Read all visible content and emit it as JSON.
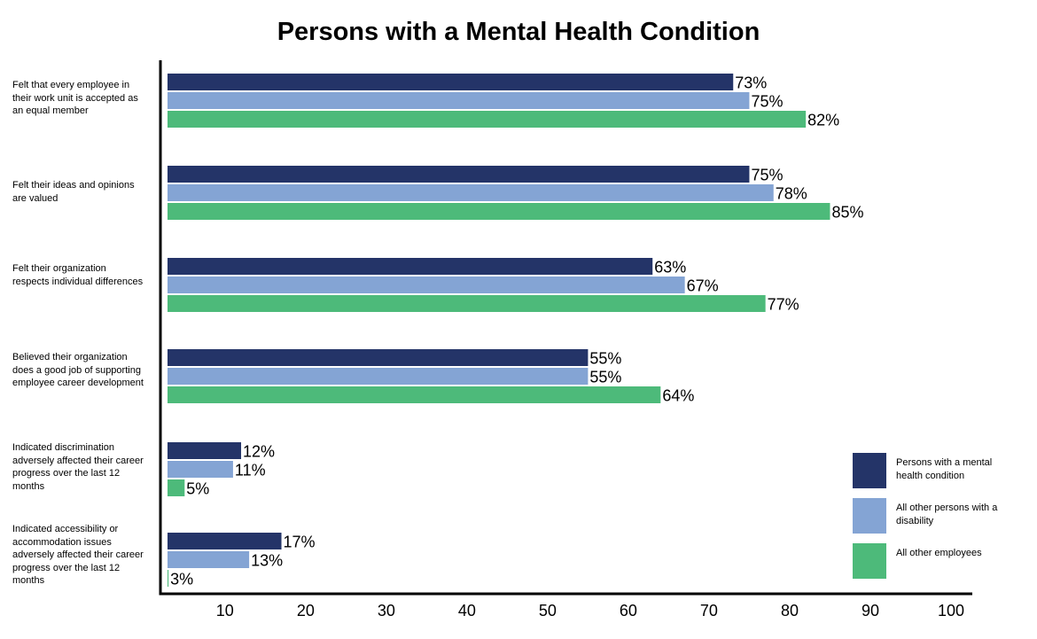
{
  "chart_data": {
    "type": "bar",
    "orientation": "horizontal",
    "title": "Persons with a Mental Health Condition",
    "xlabel": "",
    "ylabel": "",
    "xlim": [
      2,
      100
    ],
    "xticks": [
      10,
      20,
      30,
      40,
      50,
      60,
      70,
      80,
      90,
      100
    ],
    "grid": false,
    "legend_position": "bottom-right",
    "categories": [
      "Felt that every employee in their work unit is accepted as an equal member",
      "Felt their ideas and opinions are valued",
      "Felt their organization respects individual differences",
      "Believed their organization does a good job of supporting employee career development",
      "Indicated discrimination adversely affected their career progress over the last 12 months",
      "Indicated accessibility or accommodation issues adversely affected their career progress over the last 12 months"
    ],
    "series": [
      {
        "name": "Persons with a mental health condition",
        "color": "#243468",
        "values": [
          73,
          75,
          63,
          55,
          12,
          17
        ]
      },
      {
        "name": "All other persons with a disability",
        "color": "#84a4d4",
        "values": [
          75,
          78,
          67,
          55,
          11,
          13
        ]
      },
      {
        "name": "All other employees",
        "color": "#4dba7a",
        "values": [
          82,
          85,
          77,
          64,
          5,
          3
        ]
      }
    ],
    "value_suffix": "%"
  }
}
